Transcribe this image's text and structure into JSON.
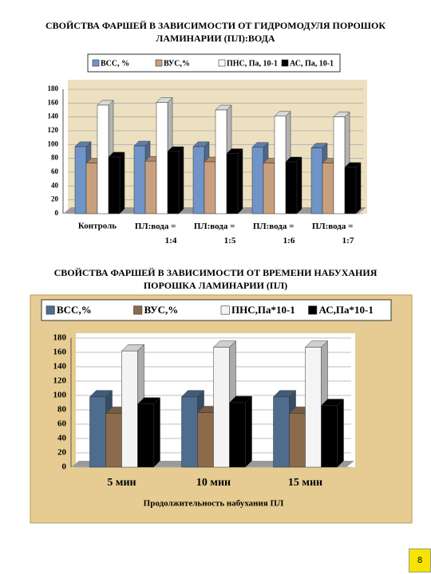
{
  "chart_data": [
    {
      "type": "bar",
      "title": "СВОЙСТВА ФАРШЕЙ В ЗАВИСИМОСТИ ОТ ГИДРОМОДУЛЯ ПОРОШОК ЛАМИНАРИИ (ПЛ):ВОДА",
      "categories": [
        "Контроль",
        "ПЛ:вода = 1:4",
        "ПЛ:вода = 1:5",
        "ПЛ:вода = 1:6",
        "ПЛ:вода = 1:7"
      ],
      "series": [
        {
          "name": "ВСС, %",
          "color": "#7094c8",
          "values": [
            97,
            98,
            97,
            96,
            95
          ]
        },
        {
          "name": "ВУС,%",
          "color": "#c9a07e",
          "values": [
            73,
            76,
            75,
            73,
            73
          ]
        },
        {
          "name": "ПНС, Па, 10-1",
          "color": "#ffffff",
          "values": [
            157,
            161,
            150,
            141,
            140
          ]
        },
        {
          "name": "АС, Па, 10-1",
          "color": "#000000",
          "values": [
            82,
            90,
            87,
            75,
            67
          ]
        }
      ],
      "ylim": [
        0,
        180
      ],
      "yticks": [
        0,
        20,
        40,
        60,
        80,
        100,
        120,
        140,
        160,
        180
      ],
      "grid": true
    },
    {
      "type": "bar",
      "title": "СВОЙСТВА ФАРШЕЙ В ЗАВИСИМОСТИ ОТ ВРЕМЕНИ НАБУХАНИЯ ПОРОШКА ЛАМИНАРИИ (ПЛ)",
      "x_label": "Продолжительность набухания ПЛ",
      "categories": [
        "5 мин",
        "10 мин",
        "15 мин"
      ],
      "series": [
        {
          "name": "ВСС,%",
          "color": "#4d6c8e",
          "values": [
            98,
            98,
            98
          ]
        },
        {
          "name": "ВУС,%",
          "color": "#8b6b4b",
          "values": [
            75,
            76,
            75
          ]
        },
        {
          "name": "ПНС,Па*10-1",
          "color": "#f4f4f4",
          "values": [
            162,
            167,
            167
          ]
        },
        {
          "name": "АС,Па*10-1",
          "color": "#000000",
          "values": [
            88,
            90,
            86
          ]
        }
      ],
      "ylim": [
        0,
        180
      ],
      "yticks": [
        0,
        20,
        40,
        60,
        80,
        100,
        120,
        140,
        160,
        180
      ],
      "grid": true
    }
  ],
  "page_number": "8"
}
